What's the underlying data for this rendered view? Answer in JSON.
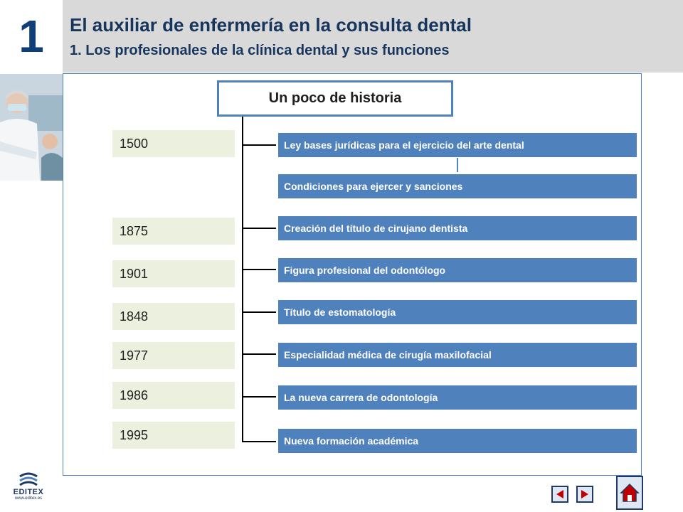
{
  "header": {
    "chapter_number": "1",
    "title": "El auxiliar de enfermería en la consulta dental",
    "subtitle": "1. Los profesionales de la clínica dental y sus funciones"
  },
  "diagram": {
    "root_label": "Un poco de historia",
    "years": [
      "1500",
      "1875",
      "1901",
      "1848",
      "1977",
      "1986",
      "1995"
    ],
    "events": [
      "Ley bases jurídicas para el ejercicio del arte dental",
      "Condiciones para ejercer y sanciones",
      "Creación del título de cirujano dentista",
      "Figura profesional del odontólogo",
      "Título de estomatología",
      "Especialidad médica de cirugía maxilofacial",
      "La nueva carrera de odontología",
      "Nueva formación académica"
    ]
  },
  "footer": {
    "logo_text": "EDITEX",
    "logo_url": "www.editex.es",
    "prev_icon": "triangle-left-icon",
    "next_icon": "triangle-right-icon",
    "home_icon": "home-icon"
  },
  "colors": {
    "brand_blue": "#4f81bd",
    "dark_blue": "#17365d",
    "year_bg": "#ebf1de",
    "header_bg": "#d9d9d9",
    "nav_red": "#c00000"
  }
}
